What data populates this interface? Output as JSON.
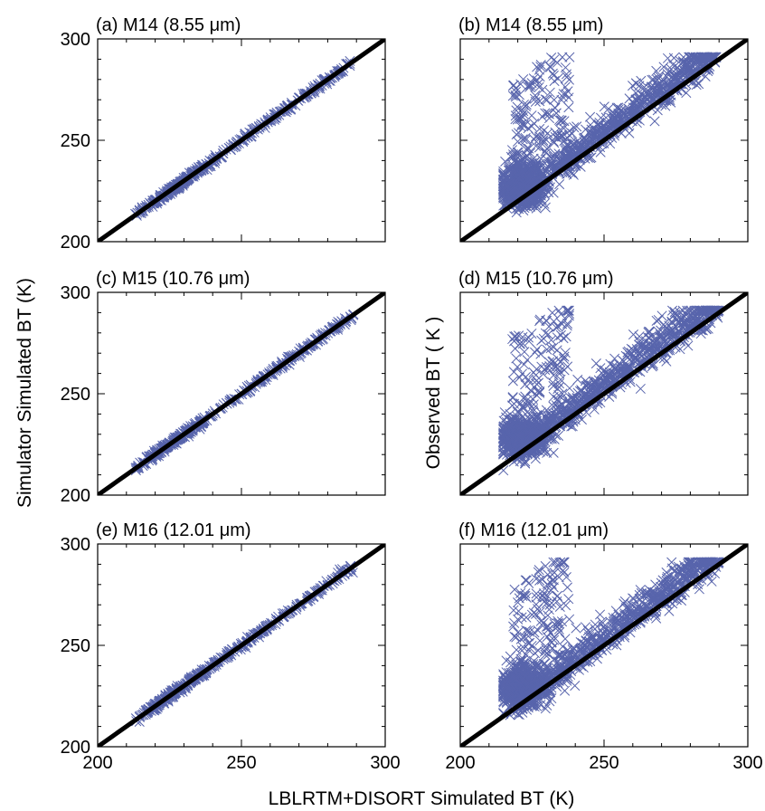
{
  "figure": {
    "xlabel_shared": "LBLRTM+DISORT Simulated BT (K)",
    "ylabel_left": "Simulator Simulated BT (K)",
    "ylabel_right": "Observed BT ( K )"
  },
  "chart_data": [
    {
      "type": "scatter",
      "panel": "a",
      "title": "(a) M14 (8.55 μm)",
      "xlim": [
        200,
        300
      ],
      "ylim": [
        200,
        300
      ],
      "xticks": [],
      "yticks": [
        "300",
        "250",
        "200"
      ],
      "marker": "x",
      "marker_color": "#3b4a9e",
      "reference_line": "y = x",
      "distribution": {
        "type": "tight",
        "x_min": 213,
        "x_max": 288,
        "spread": 0.9,
        "n": 460
      }
    },
    {
      "type": "scatter",
      "panel": "b",
      "title": "(b) M14 (8.55 μm)",
      "xlim": [
        200,
        300
      ],
      "ylim": [
        200,
        300
      ],
      "xticks": [],
      "yticks": [],
      "marker": "x",
      "marker_color": "#3b4a9e",
      "reference_line": "y = x",
      "distribution": {
        "type": "broad",
        "x_min": 215,
        "x_max": 289,
        "cluster_x": 220,
        "cluster_y": 225,
        "n": 1500
      }
    },
    {
      "type": "scatter",
      "panel": "c",
      "title": "(c) M15 (10.76 μm)",
      "xlim": [
        200,
        300
      ],
      "ylim": [
        200,
        300
      ],
      "xticks": [],
      "yticks": [
        "300",
        "250",
        "200"
      ],
      "marker": "x",
      "marker_color": "#3b4a9e",
      "reference_line": "y = x",
      "distribution": {
        "type": "tight",
        "x_min": 213,
        "x_max": 289,
        "spread": 0.9,
        "n": 460
      }
    },
    {
      "type": "scatter",
      "panel": "d",
      "title": "(d) M15 (10.76 μm)",
      "xlim": [
        200,
        300
      ],
      "ylim": [
        200,
        300
      ],
      "xticks": [],
      "yticks": [],
      "marker": "x",
      "marker_color": "#3b4a9e",
      "reference_line": "y = x",
      "distribution": {
        "type": "broad",
        "x_min": 215,
        "x_max": 290,
        "cluster_x": 220,
        "cluster_y": 226,
        "n": 1500
      }
    },
    {
      "type": "scatter",
      "panel": "e",
      "title": "(e) M16 (12.01 μm)",
      "xlim": [
        200,
        300
      ],
      "ylim": [
        200,
        300
      ],
      "xticks": [
        "200",
        "250",
        "300"
      ],
      "yticks": [
        "300",
        "250",
        "200"
      ],
      "marker": "x",
      "marker_color": "#3b4a9e",
      "reference_line": "y = x",
      "distribution": {
        "type": "tight",
        "x_min": 213,
        "x_max": 289,
        "spread": 0.9,
        "n": 460
      }
    },
    {
      "type": "scatter",
      "panel": "f",
      "title": "(f) M16 (12.01 μm)",
      "xlim": [
        200,
        300
      ],
      "ylim": [
        200,
        300
      ],
      "xticks": [
        "200",
        "250",
        "300"
      ],
      "yticks": [],
      "marker": "x",
      "marker_color": "#3b4a9e",
      "reference_line": "y = x",
      "distribution": {
        "type": "broad",
        "x_min": 215,
        "x_max": 290,
        "cluster_x": 220,
        "cluster_y": 227,
        "n": 1500
      }
    }
  ]
}
